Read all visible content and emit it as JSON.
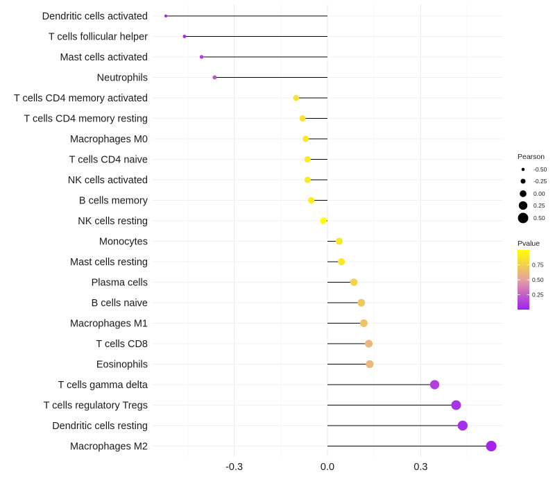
{
  "chart_data": {
    "type": "lollipop",
    "categories": [
      "Dendritic cells activated",
      "T cells follicular helper",
      "Mast cells activated",
      "Neutrophils",
      "T cells CD4 memory activated",
      "T cells CD4 memory resting",
      "Macrophages M0",
      "T cells CD4 naive",
      "NK cells activated",
      "B cells memory",
      "NK cells resting",
      "Monocytes",
      "Mast cells resting",
      "Plasma cells",
      "B cells naive",
      "Macrophages M1",
      "T cells CD8",
      "Eosinophils",
      "T cells gamma delta",
      "T cells regulatory  Tregs ",
      "Dendritic cells resting",
      "Macrophages M2"
    ],
    "values": [
      -0.52,
      -0.46,
      -0.405,
      -0.363,
      -0.101,
      -0.08,
      -0.07,
      -0.064,
      -0.064,
      -0.052,
      -0.013,
      0.038,
      0.045,
      0.085,
      0.109,
      0.117,
      0.133,
      0.136,
      0.345,
      0.414,
      0.435,
      0.527
    ],
    "pvalues": [
      0.02,
      0.05,
      0.12,
      0.2,
      0.84,
      0.86,
      0.88,
      0.89,
      0.89,
      0.91,
      0.99,
      0.88,
      0.87,
      0.77,
      0.7,
      0.68,
      0.62,
      0.62,
      0.12,
      0.07,
      0.05,
      0.02
    ],
    "x_ticks": [
      -0.3,
      0.0,
      0.3
    ],
    "x_tick_labels": [
      "-0.3",
      "0.0",
      "0.3"
    ],
    "xlim": [
      -0.57,
      0.59
    ],
    "xlabel": "",
    "ylabel": "",
    "grid": true,
    "legend_size": {
      "title": "Pearson",
      "values": [
        -0.5,
        -0.25,
        0.0,
        0.25,
        0.5
      ],
      "labels": [
        "-0.50",
        "-0.25",
        "0.00",
        "0.25",
        "0.50"
      ]
    },
    "legend_color": {
      "title": "Pvalue",
      "ticks": [
        0.75,
        0.5,
        0.25
      ],
      "labels": [
        "0.75",
        "0.50",
        "0.25"
      ],
      "range": [
        0.0,
        1.0
      ],
      "low_color": "#a020f0",
      "mid_color": "#e6a0a0",
      "high_color": "#ffff00"
    },
    "line_color": "#000000"
  }
}
